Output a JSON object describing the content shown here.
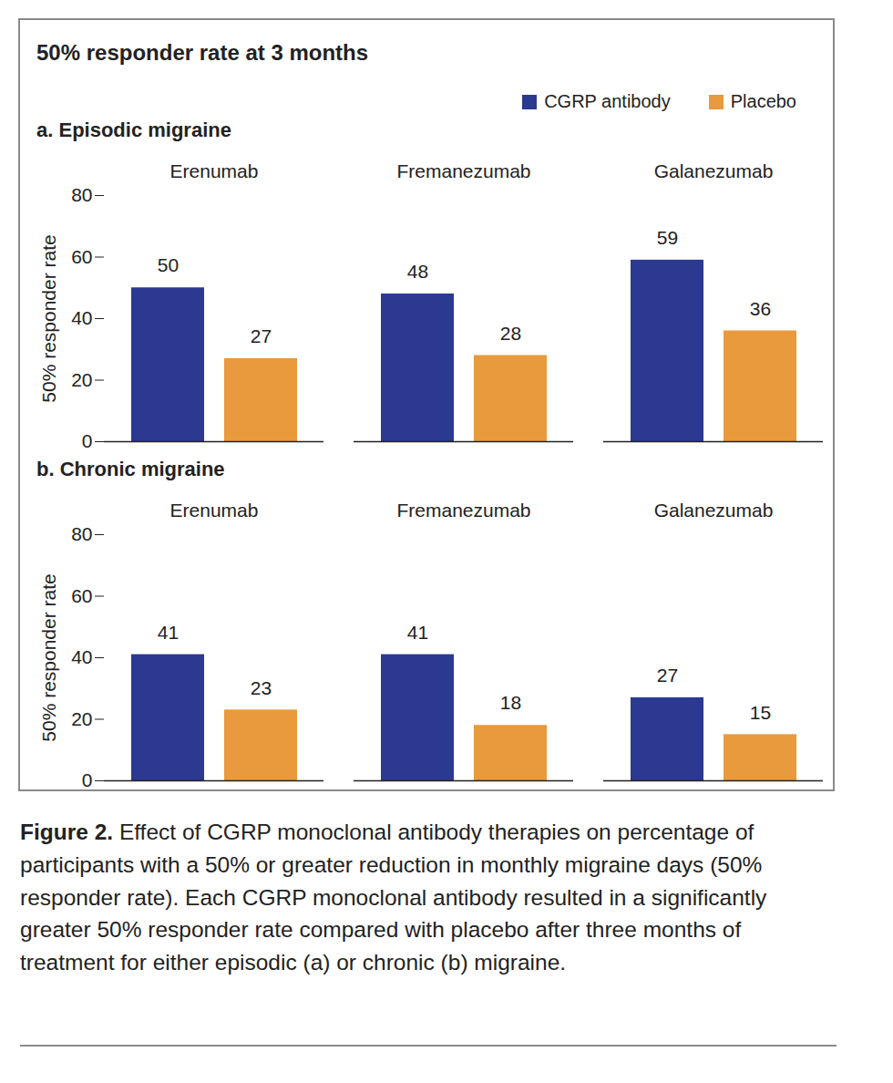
{
  "title": "50% responder rate at 3 months",
  "caption_label": "Figure 2.",
  "caption": "Effect of CGRP monoclonal antibody therapies on percentage of participants with a 50% or greater reduction in monthly migraine days (50% responder rate). Each CGRP monoclonal antibody resulted in a significantly greater 50% responder rate compared with placebo after three months of treatment for either episodic (a) or chronic (b) migraine.",
  "chart_data": [
    {
      "type": "bar",
      "title": "a. Episodic migraine",
      "categories": [
        "Erenumab",
        "Fremanezumab",
        "Galanezumab"
      ],
      "series": [
        {
          "name": "CGRP antibody",
          "color": "#2b3990",
          "values": [
            50,
            48,
            59
          ]
        },
        {
          "name": "Placebo",
          "color": "#e89a3c",
          "values": [
            27,
            28,
            36
          ]
        }
      ],
      "y_label": "50% responder rate",
      "ylim": [
        0,
        80
      ],
      "yticks": [
        0,
        20,
        40,
        60,
        80
      ],
      "data_labels": true,
      "legend": "top-right"
    },
    {
      "type": "bar",
      "title": "b. Chronic migraine",
      "categories": [
        "Erenumab",
        "Fremanezumab",
        "Galanezumab"
      ],
      "series": [
        {
          "name": "CGRP antibody",
          "color": "#2b3990",
          "values": [
            41,
            41,
            27
          ]
        },
        {
          "name": "Placebo",
          "color": "#e89a3c",
          "values": [
            23,
            18,
            15
          ]
        }
      ],
      "y_label": "50% responder rate",
      "ylim": [
        0,
        80
      ],
      "yticks": [
        0,
        20,
        40,
        60,
        80
      ],
      "data_labels": true
    }
  ]
}
